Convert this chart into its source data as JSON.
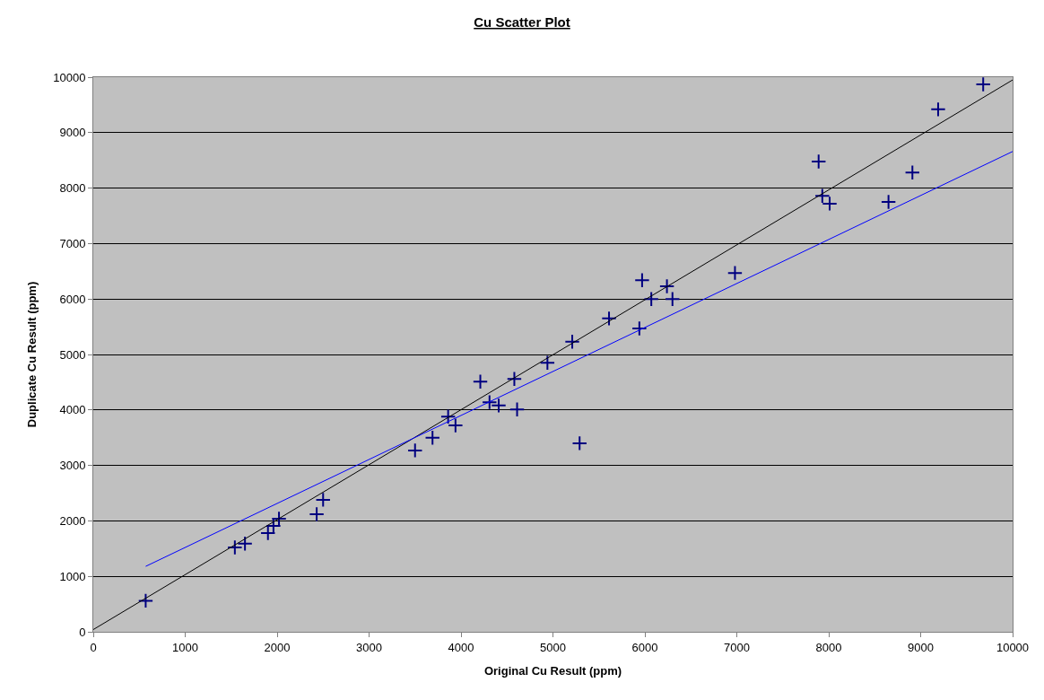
{
  "chart_data": {
    "type": "scatter",
    "title": "Cu Scatter Plot",
    "xlabel": "Original Cu Result (ppm)",
    "ylabel": "Duplicate Cu Result (ppm)",
    "xlim": [
      0,
      10000
    ],
    "xticks": [
      0,
      1000,
      2000,
      3000,
      4000,
      5000,
      6000,
      7000,
      8000,
      9000,
      10000
    ],
    "ylim": [
      0,
      10000
    ],
    "yticks": [
      0,
      1000,
      2000,
      3000,
      4000,
      5000,
      6000,
      7000,
      8000,
      9000,
      10000
    ],
    "grid": "y",
    "legend": false,
    "marker": "cross",
    "series": [
      {
        "color": "#000080",
        "x": [
          570,
          1540,
          1650,
          1900,
          1960,
          2020,
          2430,
          2500,
          3500,
          3690,
          3860,
          3940,
          4210,
          4310,
          4410,
          4580,
          4610,
          4940,
          5290,
          5210,
          5610,
          5940,
          5970,
          6070,
          6240,
          6300,
          6980,
          7890,
          7930,
          8010,
          8650,
          8910,
          9190,
          9680
        ],
        "values": [
          560,
          1520,
          1590,
          1780,
          1910,
          2040,
          2120,
          2380,
          3270,
          3500,
          3880,
          3720,
          4510,
          4140,
          4080,
          4560,
          4010,
          4850,
          3400,
          5230,
          5650,
          5470,
          6340,
          6000,
          6230,
          6000,
          6470,
          8480,
          7860,
          7720,
          7750,
          8280,
          9420,
          9870
        ]
      },
      {
        "type": "line",
        "color": "#000000",
        "x": [
          0,
          10000
        ],
        "values": [
          40,
          9950
        ],
        "marker": "none"
      },
      {
        "type": "line",
        "color": "#0000ff",
        "x": [
          570,
          10000
        ],
        "values": [
          1180,
          8660
        ],
        "marker": "none"
      }
    ]
  }
}
